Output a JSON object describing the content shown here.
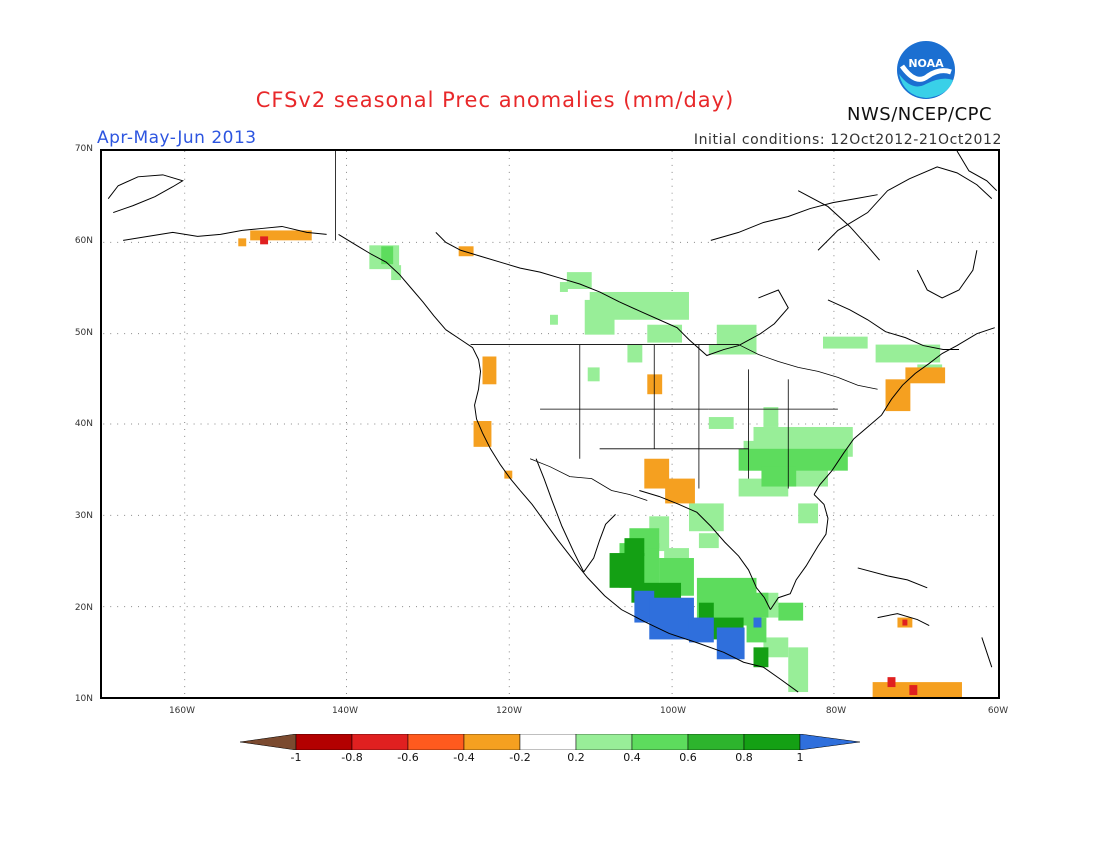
{
  "header": {
    "title": "CFSv2 seasonal Prec anomalies (mm/day)",
    "period": "Apr-May-Jun 2013",
    "initial_conditions": "Initial conditions: 12Oct2012-21Oct2012",
    "org": "NWS/NCEP/CPC",
    "logo_text": "NOAA"
  },
  "map": {
    "lat_labels": [
      "70N",
      "60N",
      "50N",
      "40N",
      "30N",
      "20N",
      "10N"
    ],
    "lon_labels": [
      "160W",
      "140W",
      "120W",
      "100W",
      "80W",
      "60W"
    ],
    "lon_range": [
      -170,
      -60
    ],
    "lat_range": [
      10,
      70
    ]
  },
  "legend": {
    "tick_labels": [
      "-1",
      "-0.8",
      "-0.6",
      "-0.4",
      "-0.2",
      "0.2",
      "0.4",
      "0.6",
      "0.8",
      "1"
    ],
    "colors": [
      "#7b4a2f",
      "#b30000",
      "#e02020",
      "#ff5a1e",
      "#f5a020",
      "#ffffff",
      "#98ee98",
      "#5ddc5d",
      "#2db42d",
      "#14a014",
      "#2f6fdc"
    ]
  }
}
